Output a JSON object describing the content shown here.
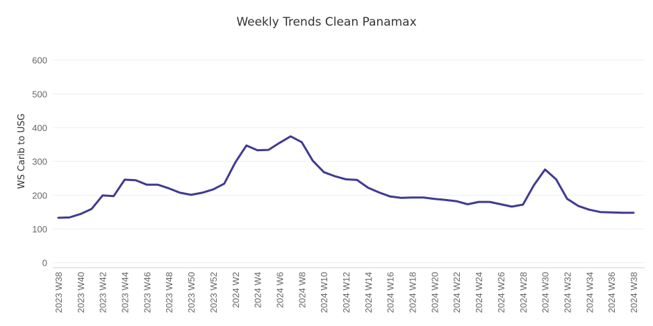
{
  "chart_data": {
    "type": "line",
    "title": "Weekly Trends Clean Panamax",
    "ylabel": "WS Carib to USG",
    "xlabel": "",
    "ylim": [
      -15,
      665
    ],
    "yticks": [
      0,
      100,
      200,
      300,
      400,
      500,
      600
    ],
    "grid": true,
    "color": "#3f3a93",
    "categories": [
      "2023 W38",
      "2023 W39",
      "2023 W40",
      "2023 W41",
      "2023 W42",
      "2023 W43",
      "2023 W44",
      "2023 W45",
      "2023 W46",
      "2023 W47",
      "2023 W48",
      "2023 W49",
      "2023 W50",
      "2023 W51",
      "2023 W52",
      "2024 W1",
      "2024 W2",
      "2024 W3",
      "2024 W4",
      "2024 W5",
      "2024 W6",
      "2024 W7",
      "2024 W8",
      "2024 W9",
      "2024 W10",
      "2024 W11",
      "2024 W12",
      "2024 W13",
      "2024 W14",
      "2024 W15",
      "2024 W16",
      "2024 W17",
      "2024 W18",
      "2024 W19",
      "2024 W20",
      "2024 W21",
      "2024 W22",
      "2024 W23",
      "2024 W24",
      "2024 W25",
      "2024 W26",
      "2024 W27",
      "2024 W28",
      "2024 W29",
      "2024 W30",
      "2024 W31",
      "2024 W32",
      "2024 W33",
      "2024 W34",
      "2024 W35",
      "2024 W36",
      "2024 W37",
      "2024 W38"
    ],
    "tick_labels": [
      "2023 W38",
      "2023 W40",
      "2023 W42",
      "2023 W44",
      "2023 W46",
      "2023 W48",
      "2023 W50",
      "2023 W52",
      "2024 W2",
      "2024 W4",
      "2024 W6",
      "2024 W8",
      "2024 W10",
      "2024 W12",
      "2024 W14",
      "2024 W16",
      "2024 W18",
      "2024 W20",
      "2024 W22",
      "2024 W24",
      "2024 W26",
      "2024 W28",
      "2024 W30",
      "2024 W32",
      "2024 W34",
      "2024 W36",
      "2024 W38"
    ],
    "values": [
      133,
      134,
      144,
      159,
      199,
      197,
      246,
      244,
      231,
      231,
      220,
      207,
      201,
      207,
      217,
      234,
      297,
      347,
      333,
      334,
      355,
      374,
      357,
      302,
      268,
      256,
      247,
      245,
      222,
      208,
      196,
      192,
      193,
      193,
      189,
      186,
      182,
      173,
      180,
      180,
      173,
      166,
      172,
      230,
      276,
      247,
      189,
      168,
      157,
      150,
      149,
      148,
      148
    ]
  }
}
